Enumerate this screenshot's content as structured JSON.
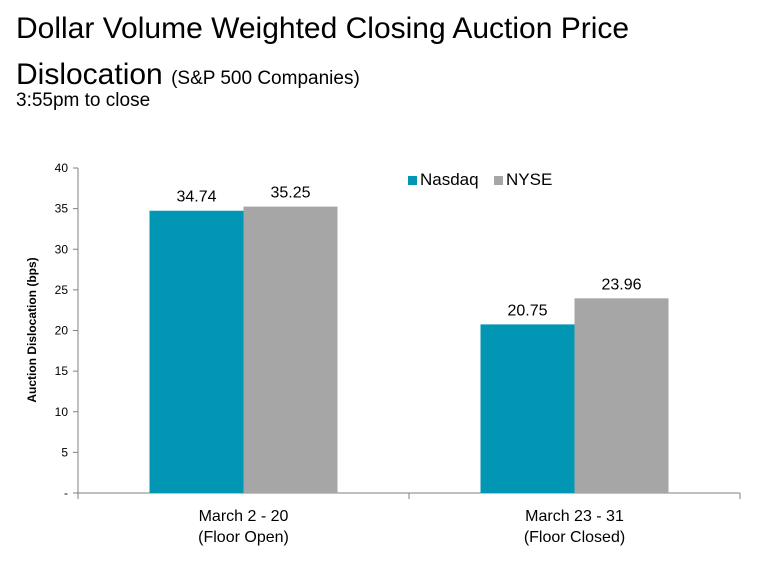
{
  "chart_data": {
    "type": "bar",
    "title_line1": "Dollar Volume Weighted Closing Auction Price",
    "title_line2": "Dislocation",
    "title_note": "(S&P 500 Companies)",
    "subtitle": "3:55pm to close",
    "ylabel": "Auction Dislocation (bps)",
    "xlabel": "",
    "ylim": [
      0,
      40
    ],
    "yticks": [
      {
        "value": 0,
        "label": "-"
      },
      {
        "value": 5,
        "label": "5"
      },
      {
        "value": 10,
        "label": "10"
      },
      {
        "value": 15,
        "label": "15"
      },
      {
        "value": 20,
        "label": "20"
      },
      {
        "value": 25,
        "label": "25"
      },
      {
        "value": 30,
        "label": "30"
      },
      {
        "value": 35,
        "label": "35"
      },
      {
        "value": 40,
        "label": "40"
      }
    ],
    "categories": [
      {
        "line1": "March 2 - 20",
        "line2": "(Floor Open)"
      },
      {
        "line1": "March 23 - 31",
        "line2": "(Floor Closed)"
      }
    ],
    "series": [
      {
        "name": "Nasdaq",
        "color": "#0096B4",
        "values": [
          34.74,
          20.75
        ],
        "labels": [
          "34.74",
          "20.75"
        ]
      },
      {
        "name": "NYSE",
        "color": "#A6A6A6",
        "values": [
          35.25,
          23.96
        ],
        "labels": [
          "35.25",
          "23.96"
        ]
      }
    ],
    "grid": false,
    "legend_position": "top-right"
  }
}
